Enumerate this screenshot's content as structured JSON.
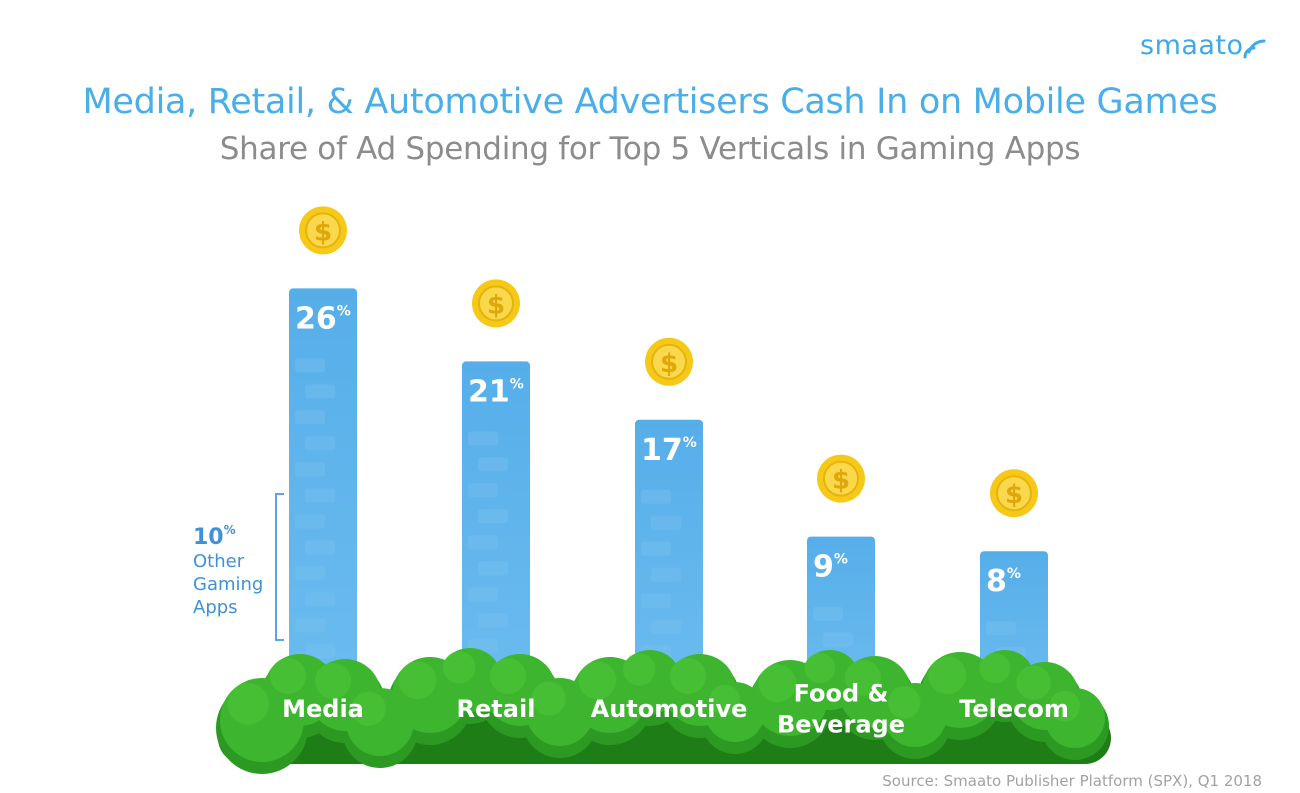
{
  "logo": "smaato",
  "title": "Media, Retail, & Automotive Advertisers Cash In on Mobile Games",
  "subtitle": "Share of Ad Spending for Top 5 Verticals in Gaming Apps",
  "source": "Source: Smaato Publisher Platform (SPX), Q1 2018",
  "other": {
    "value": "10",
    "unit": "%",
    "lines": [
      "Other",
      "Gaming",
      "Apps"
    ]
  },
  "colors": {
    "bar": "#5bb2ea",
    "bar_texture": "#7ec4f0",
    "coin": "#f6c918",
    "coin_inner": "#f9d84b",
    "bush": "#3eb52e",
    "bush_dark": "#1e7d17",
    "title": "#4aaee8",
    "subtitle": "#8c8c8c"
  },
  "chart_data": {
    "type": "bar",
    "categories": [
      "Media",
      "Retail",
      "Automotive",
      "Food & Beverage",
      "Telecom"
    ],
    "category_lines": [
      [
        "Media"
      ],
      [
        "Retail"
      ],
      [
        "Automotive"
      ],
      [
        "Food &",
        "Beverage"
      ],
      [
        "Telecom"
      ]
    ],
    "values": [
      26,
      21,
      17,
      9,
      8
    ],
    "unit": "%",
    "annotation": {
      "bar": "Media",
      "value": 10,
      "label": "Other Gaming Apps"
    },
    "icon": "dollar-coin-icon",
    "legend": "none",
    "grid": false
  }
}
